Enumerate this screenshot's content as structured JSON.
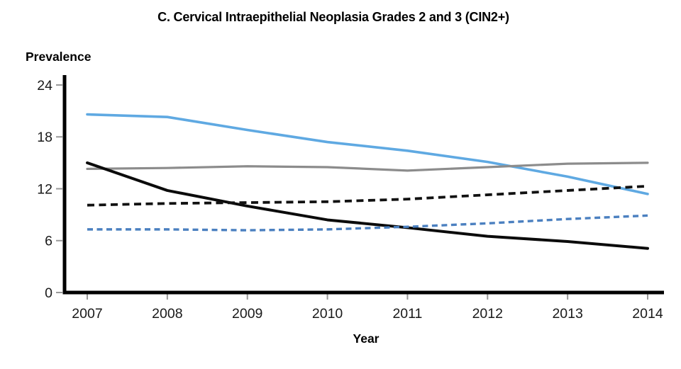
{
  "figure": {
    "title": "C. Cervical Intraepithelial Neoplasia Grades 2 and 3 (CIN2+)"
  },
  "chart_data": {
    "type": "line",
    "title": "C. Cervical Intraepithelial Neoplasia Grades 2 and 3 (CIN2+)",
    "xlabel": "Year",
    "ylabel": "Prevalence",
    "x": [
      2007,
      2008,
      2009,
      2010,
      2011,
      2012,
      2013,
      2014
    ],
    "ylim": [
      0,
      24
    ],
    "yticks": [
      0,
      6,
      12,
      18,
      24
    ],
    "grid": false,
    "legend": "none",
    "axis_color": "#000000",
    "tick_color": "#999999",
    "series": [
      {
        "name": "light-blue-solid",
        "line_style": "solid",
        "color": "#5FA9E2",
        "values": [
          20.6,
          20.3,
          18.8,
          17.4,
          16.4,
          15.1,
          13.4,
          11.4
        ]
      },
      {
        "name": "gray-solid",
        "line_style": "solid",
        "color": "#8C8C8C",
        "values": [
          14.3,
          14.4,
          14.6,
          14.5,
          14.1,
          14.5,
          14.9,
          15.0
        ]
      },
      {
        "name": "black-solid",
        "line_style": "solid",
        "color": "#0B0B0B",
        "values": [
          15.0,
          11.8,
          10.0,
          8.4,
          7.5,
          6.5,
          5.9,
          5.1
        ]
      },
      {
        "name": "black-dashed",
        "line_style": "dashed",
        "color": "#111111",
        "values": [
          10.1,
          10.3,
          10.4,
          10.5,
          10.8,
          11.3,
          11.8,
          12.3
        ]
      },
      {
        "name": "blue-dashed",
        "line_style": "dashed",
        "color": "#4B80C0",
        "values": [
          7.3,
          7.3,
          7.2,
          7.3,
          7.6,
          8.0,
          8.5,
          8.9
        ]
      }
    ]
  }
}
